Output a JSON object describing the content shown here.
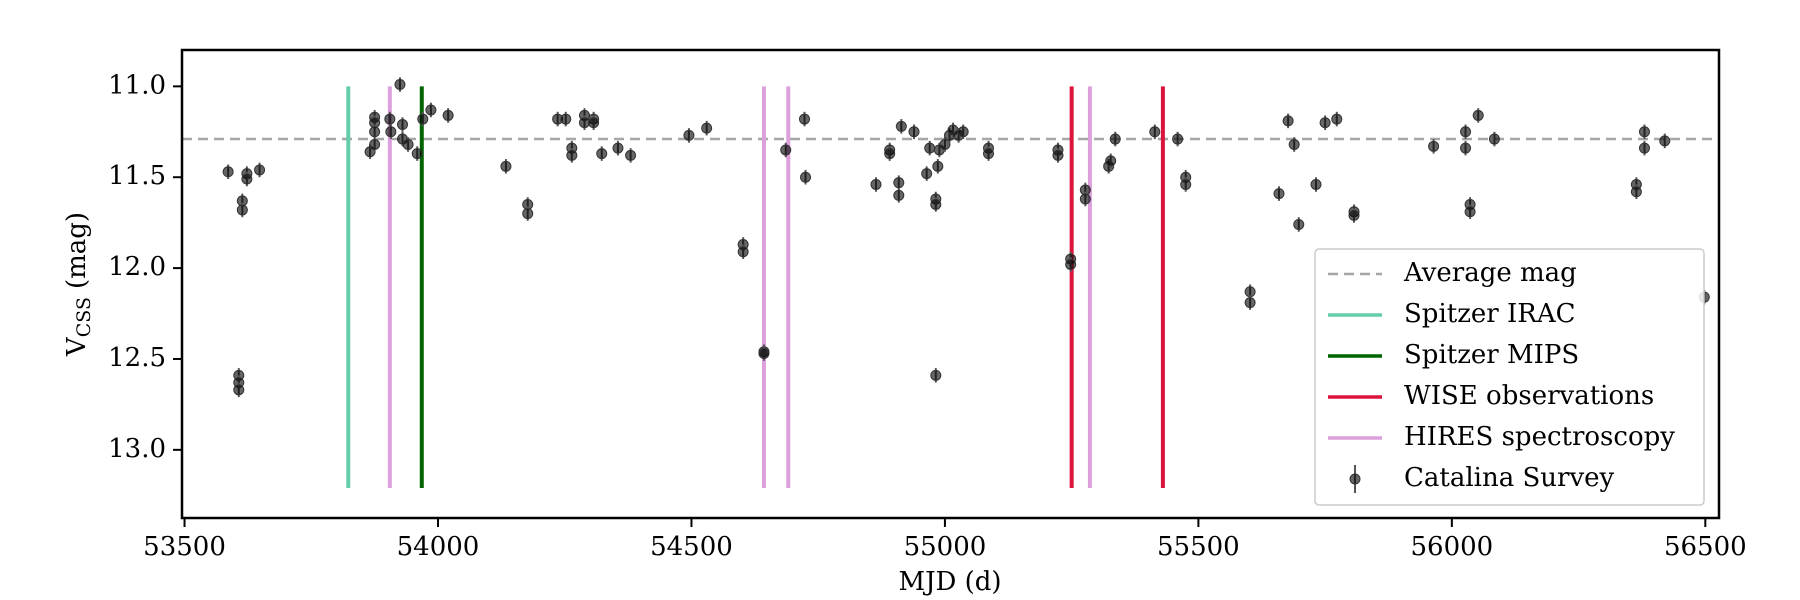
{
  "chart_data": {
    "type": "scatter",
    "xlabel": "MJD (d)",
    "ylabel": [
      "V",
      "CSS",
      "(mag)"
    ],
    "xlim": [
      53495,
      56527
    ],
    "ylim": [
      13.375,
      10.8
    ],
    "xticks": [
      53500,
      54000,
      54500,
      55000,
      55500,
      56000,
      56500
    ],
    "yticks": [
      {
        "value": 11,
        "label": "11.0"
      },
      11.5,
      {
        "value": 12,
        "label": "12.0"
      },
      12.5,
      {
        "value": 13,
        "label": "13.0"
      }
    ],
    "legend": "lower right",
    "hlines": [
      {
        "name": "Average mag",
        "value": 11.29,
        "color": "#a6a6a6",
        "style": "dashed"
      }
    ],
    "vline_range": [
      11.0,
      13.21
    ],
    "vlines": [
      {
        "name": "Spitzer IRAC",
        "color": "#66cdaa",
        "x": [
          53823
        ]
      },
      {
        "name": "Spitzer MIPS",
        "color": "#006400",
        "x": [
          53968
        ]
      },
      {
        "name": "WISE observations",
        "color": "#dc143c",
        "x": [
          55250,
          55430
        ]
      },
      {
        "name": "HIRES spectroscopy",
        "color": "#dda0dd",
        "x": [
          53905,
          54643,
          54691,
          55286
        ]
      }
    ],
    "series": [
      {
        "name": "Catalina Survey",
        "color": "#000000",
        "yerr": 0.04,
        "x": [
          53586,
          53614,
          53614,
          53607,
          53607,
          53607,
          53623,
          53623,
          53648,
          53866,
          53875,
          53875,
          53875,
          53875,
          53905,
          53925,
          53907,
          53930,
          53930,
          53941,
          53959,
          53970,
          53986,
          54020,
          54134,
          54177,
          54177,
          54236,
          54252,
          54264,
          54264,
          54289,
          54289,
          54307,
          54307,
          54323,
          54355,
          54380,
          54495,
          54530,
          54602,
          54602,
          54643,
          54643,
          54686,
          54723,
          54725,
          54864,
          54891,
          54891,
          54909,
          54909,
          54914,
          54939,
          54964,
          54970,
          54982,
          54982,
          54986,
          54982,
          54989,
          55000,
          55009,
          55016,
          55027,
          55036,
          55086,
          55086,
          55223,
          55223,
          55248,
          55248,
          55277,
          55277,
          55323,
          55327,
          55336,
          55414,
          55459,
          55475,
          55475,
          55602,
          55602,
          55659,
          55677,
          55689,
          55698,
          55732,
          55750,
          55773,
          55807,
          55807,
          55964,
          56027,
          56027,
          56036,
          56036,
          56052,
          56084,
          56364,
          56364,
          56380,
          56380,
          56420,
          56498
        ],
        "values": [
          11.47,
          11.63,
          11.68,
          12.59,
          12.63,
          12.67,
          11.48,
          11.51,
          11.46,
          11.36,
          11.17,
          11.2,
          11.25,
          11.32,
          11.18,
          10.99,
          11.25,
          11.21,
          11.29,
          11.32,
          11.37,
          11.18,
          11.13,
          11.16,
          11.44,
          11.65,
          11.7,
          11.18,
          11.18,
          11.34,
          11.38,
          11.16,
          11.2,
          11.18,
          11.2,
          11.37,
          11.34,
          11.38,
          11.27,
          11.23,
          11.87,
          11.91,
          12.46,
          12.47,
          11.35,
          11.18,
          11.5,
          11.54,
          11.35,
          11.37,
          11.53,
          11.6,
          11.22,
          11.25,
          11.48,
          11.34,
          11.62,
          11.65,
          11.44,
          12.59,
          11.35,
          11.32,
          11.27,
          11.24,
          11.27,
          11.25,
          11.34,
          11.37,
          11.35,
          11.38,
          11.95,
          11.98,
          11.57,
          11.62,
          11.44,
          11.41,
          11.29,
          11.25,
          11.29,
          11.5,
          11.54,
          12.13,
          12.19,
          11.59,
          11.19,
          11.32,
          11.76,
          11.54,
          11.2,
          11.18,
          11.69,
          11.71,
          11.33,
          11.25,
          11.34,
          11.65,
          11.69,
          11.16,
          11.29,
          11.54,
          11.58,
          11.25,
          11.34,
          11.3,
          12.16
        ]
      }
    ]
  }
}
